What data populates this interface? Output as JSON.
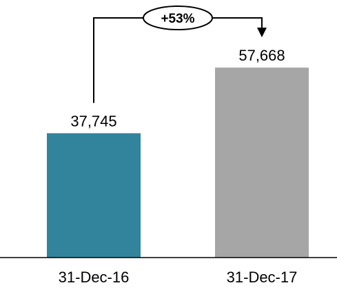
{
  "chart_data": {
    "type": "bar",
    "categories": [
      "31-Dec-16",
      "31-Dec-17"
    ],
    "values": [
      37745,
      57668
    ],
    "value_labels": [
      "37,745",
      "57,668"
    ],
    "colors": [
      "#31849b",
      "#a6a6a6"
    ],
    "ylim": [
      0,
      60000
    ],
    "grid": false,
    "annotation": {
      "label": "+53%",
      "from": "31-Dec-16",
      "to": "31-Dec-17"
    }
  }
}
